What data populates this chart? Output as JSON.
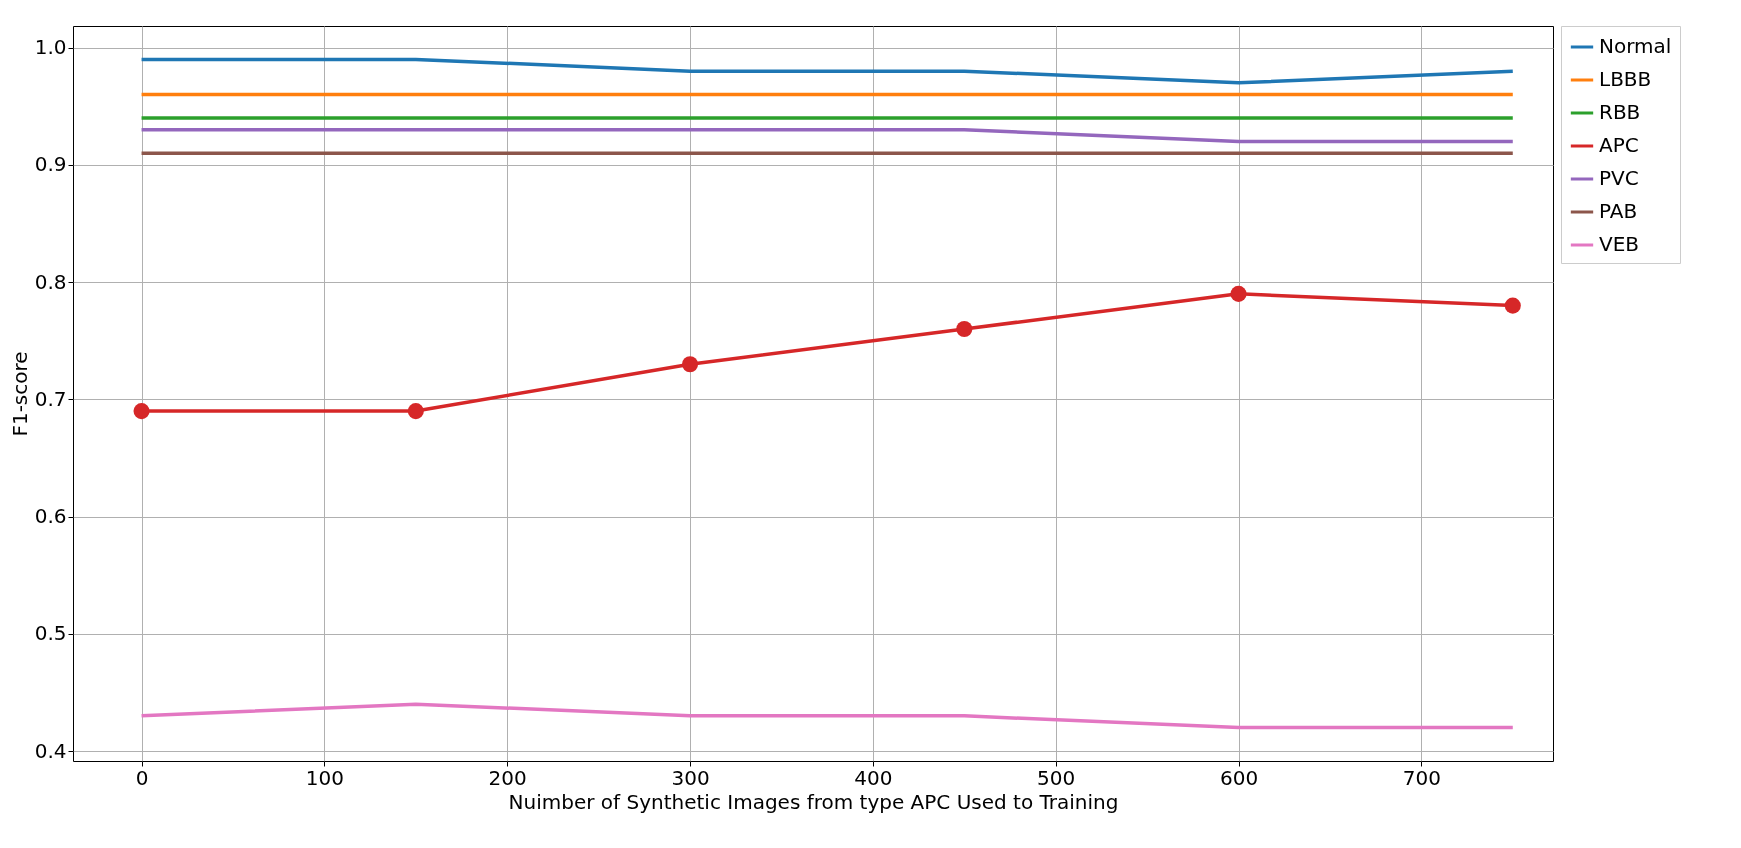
{
  "chart_data": {
    "type": "line",
    "xlabel": "Nuimber of Synthetic Images from type APC Used to Training",
    "ylabel": "F1-score",
    "x": [
      0,
      150,
      300,
      450,
      600,
      750
    ],
    "series": [
      {
        "name": "Normal",
        "color": "#1f77b4",
        "values": [
          0.99,
          0.99,
          0.98,
          0.98,
          0.97,
          0.98
        ]
      },
      {
        "name": "LBBB",
        "color": "#ff7f0e",
        "values": [
          0.96,
          0.96,
          0.96,
          0.96,
          0.96,
          0.96
        ]
      },
      {
        "name": "RBB",
        "color": "#2ca02c",
        "values": [
          0.94,
          0.94,
          0.94,
          0.94,
          0.94,
          0.94
        ]
      },
      {
        "name": "APC",
        "color": "#d62728",
        "values": [
          0.69,
          0.69,
          0.73,
          0.76,
          0.79,
          0.78
        ],
        "marker": "circle"
      },
      {
        "name": "PVC",
        "color": "#9467bd",
        "values": [
          0.93,
          0.93,
          0.93,
          0.93,
          0.92,
          0.92
        ]
      },
      {
        "name": "PAB",
        "color": "#8c564b",
        "values": [
          0.91,
          0.91,
          0.91,
          0.91,
          0.91,
          0.91
        ]
      },
      {
        "name": "VEB",
        "color": "#e377c2",
        "values": [
          0.43,
          0.44,
          0.43,
          0.43,
          0.42,
          0.42
        ]
      }
    ],
    "xlim": [
      -37.5,
      772
    ],
    "xticks": [
      0,
      100,
      200,
      300,
      400,
      500,
      600,
      700
    ],
    "ylim": [
      0.3915,
      1.0185
    ],
    "yticks": [
      0.4,
      0.5,
      0.6,
      0.7,
      0.8,
      0.9,
      {
        "value": 1,
        "label": "1.0"
      }
    ],
    "grid": true,
    "legend": "top right",
    "line_style": "solid"
  }
}
